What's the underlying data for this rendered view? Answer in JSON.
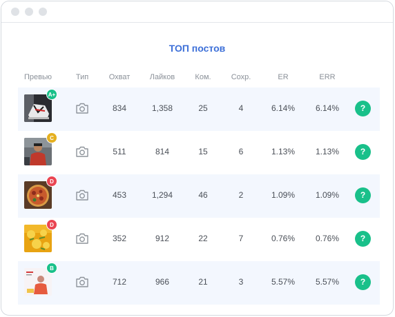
{
  "window": {
    "title_dots": [
      "close",
      "minimize",
      "maximize"
    ]
  },
  "title": "ТОП постов",
  "columns": [
    "Превью",
    "Тип",
    "Охват",
    "Лайков",
    "Ком.",
    "Сохр.",
    "ER",
    "ERR"
  ],
  "colors": {
    "accent": "#3c6fd8",
    "help": "#19c08a",
    "grade_a": "#19c08a",
    "grade_c": "#e5b020",
    "grade_d": "#ea4552",
    "row_shade": "#f3f7fe"
  },
  "rows": [
    {
      "grade": "A+",
      "grade_color": "#19c08a",
      "type_icon": "camera-icon",
      "reach": "834",
      "likes": "1,358",
      "comments": "25",
      "saves": "4",
      "er": "6.14%",
      "err": "6.14%",
      "help": "?",
      "thumb": "sneaker-photo"
    },
    {
      "grade": "C",
      "grade_color": "#e5b020",
      "type_icon": "camera-icon",
      "reach": "511",
      "likes": "814",
      "comments": "15",
      "saves": "6",
      "er": "1.13%",
      "err": "1.13%",
      "help": "?",
      "thumb": "person-photo"
    },
    {
      "grade": "D",
      "grade_color": "#ea4552",
      "type_icon": "camera-icon",
      "reach": "453",
      "likes": "1,294",
      "comments": "46",
      "saves": "2",
      "er": "1.09%",
      "err": "1.09%",
      "help": "?",
      "thumb": "pizza-photo"
    },
    {
      "grade": "D",
      "grade_color": "#ea4552",
      "type_icon": "camera-icon",
      "reach": "352",
      "likes": "912",
      "comments": "22",
      "saves": "7",
      "er": "0.76%",
      "err": "0.76%",
      "help": "?",
      "thumb": "yellow-food-photo"
    },
    {
      "grade": "B",
      "grade_color": "#19c08a",
      "type_icon": "camera-icon",
      "reach": "712",
      "likes": "966",
      "comments": "21",
      "saves": "3",
      "er": "5.57%",
      "err": "5.57%",
      "help": "?",
      "thumb": "promo-photo"
    }
  ]
}
